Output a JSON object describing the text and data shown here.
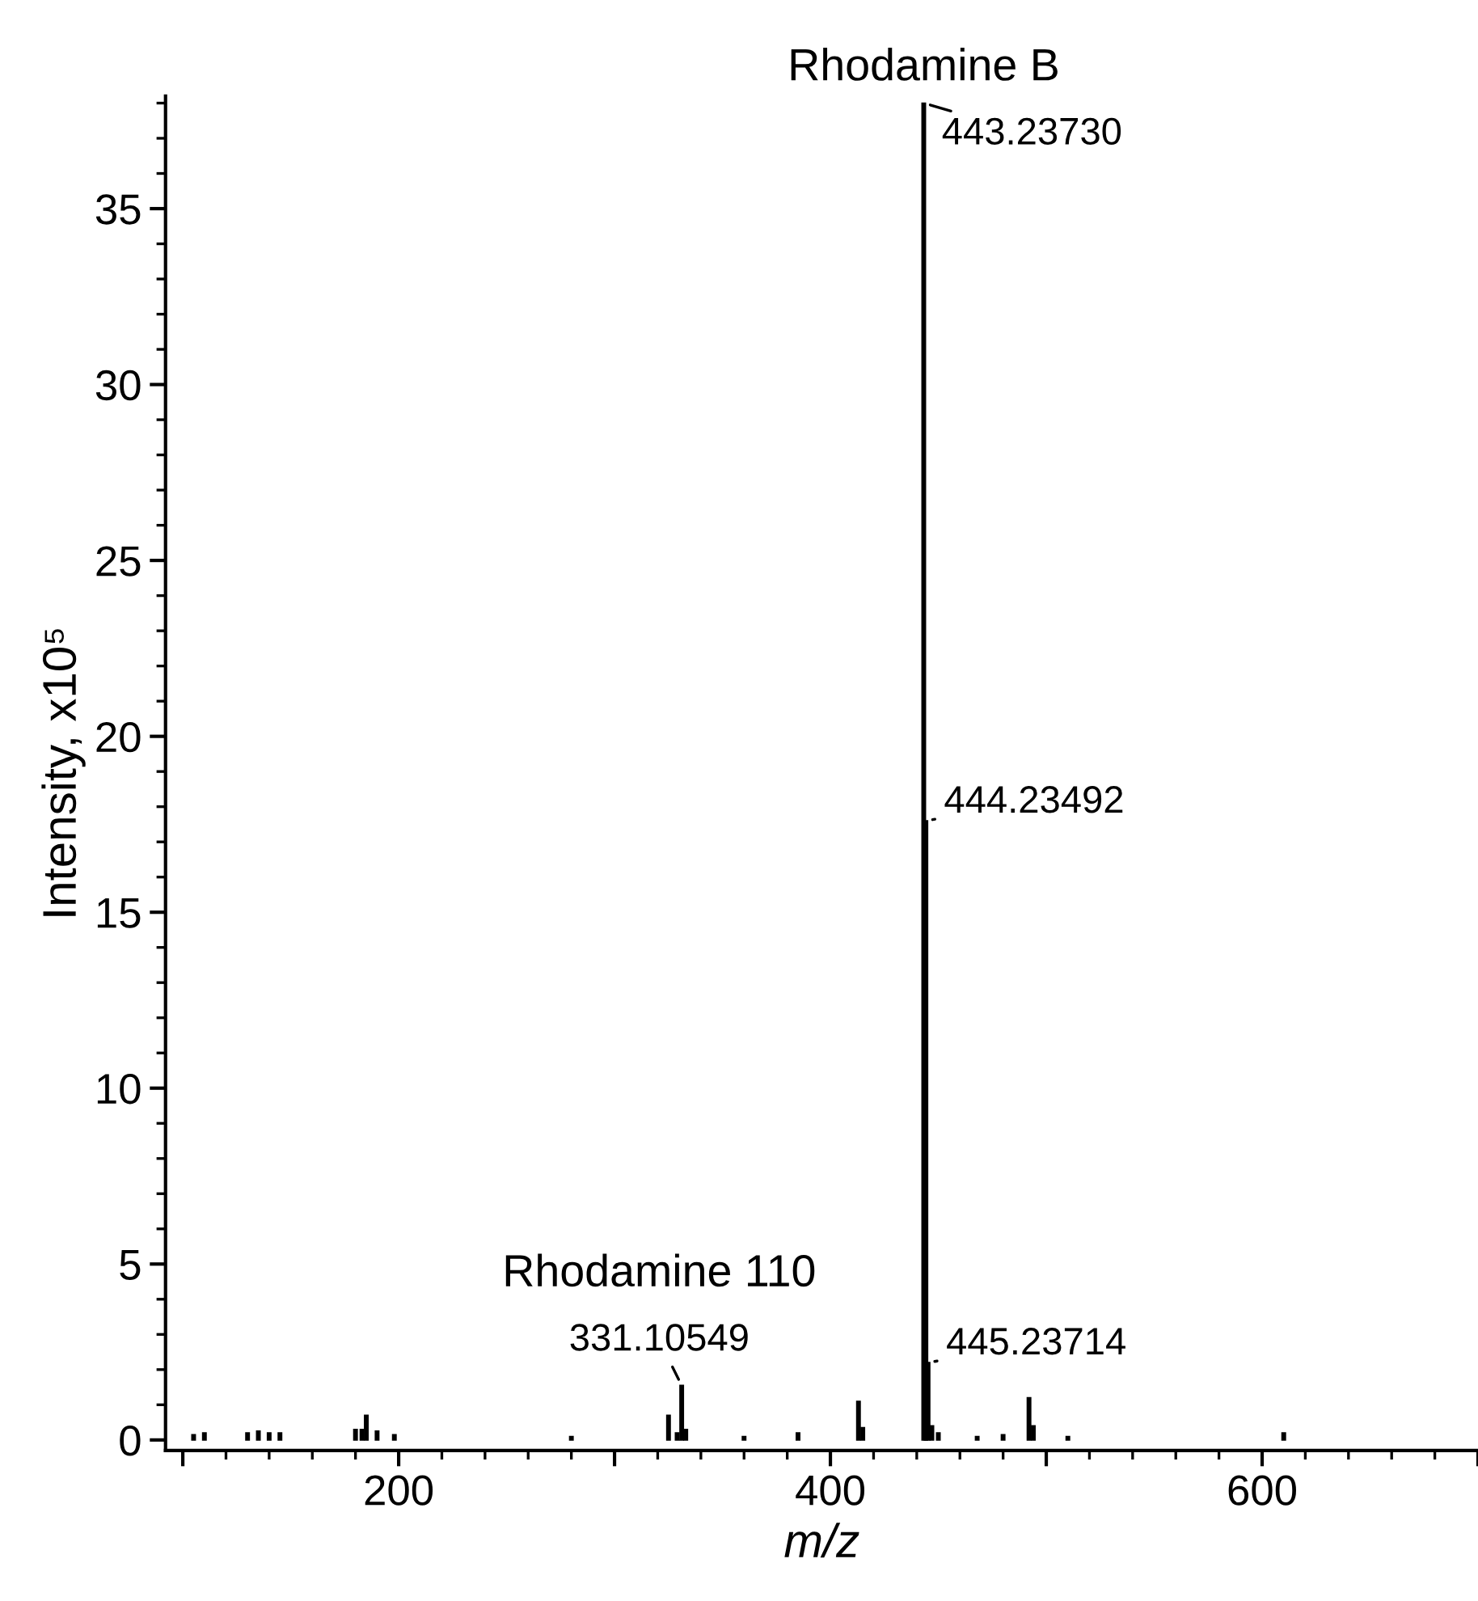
{
  "chart_data": {
    "type": "bar",
    "xlabel": "m/z",
    "ylabel": "Intensity, x10⁵",
    "x": [
      105,
      110,
      130,
      135,
      140,
      145,
      180,
      183,
      185,
      190,
      198,
      280,
      325,
      329,
      331.10549,
      333,
      360,
      385,
      413,
      415,
      443.2373,
      444.23492,
      445.23714,
      447,
      450,
      468,
      480,
      492,
      494,
      510,
      610
    ],
    "values": [
      0.15,
      0.2,
      0.2,
      0.25,
      0.2,
      0.2,
      0.3,
      0.3,
      0.7,
      0.25,
      0.15,
      0.1,
      0.7,
      0.2,
      1.55,
      0.3,
      0.1,
      0.2,
      1.1,
      0.35,
      38.0,
      17.6,
      2.2,
      0.4,
      0.2,
      0.1,
      0.15,
      1.2,
      0.4,
      0.1,
      0.2
    ],
    "color": "#000000",
    "xlim": [
      92,
      700
    ],
    "xticks": [
      {
        "value": 100,
        "label": null
      },
      200,
      {
        "value": 300,
        "label": null
      },
      400,
      {
        "value": 500,
        "label": null
      },
      600,
      {
        "value": 700,
        "label": null
      }
    ],
    "ylim": [
      -0.3,
      38.2
    ],
    "yticks": [
      0,
      5,
      10,
      15,
      20,
      25,
      30,
      35
    ],
    "annotations": [
      {
        "text": "Rhodamine B",
        "x": 443.2373,
        "y": 38.0
      },
      {
        "text": "443.23730",
        "x": 443.2373,
        "y": 38.0
      },
      {
        "text": "444.23492",
        "x": 444.23492,
        "y": 17.6
      },
      {
        "text": "445.23714",
        "x": 445.23714,
        "y": 2.2
      },
      {
        "text": "Rhodamine 110",
        "x": 331.10549,
        "y": 1.55
      },
      {
        "text": "331.10549",
        "x": 331.10549,
        "y": 1.55
      }
    ],
    "grid": false,
    "legend": false
  }
}
